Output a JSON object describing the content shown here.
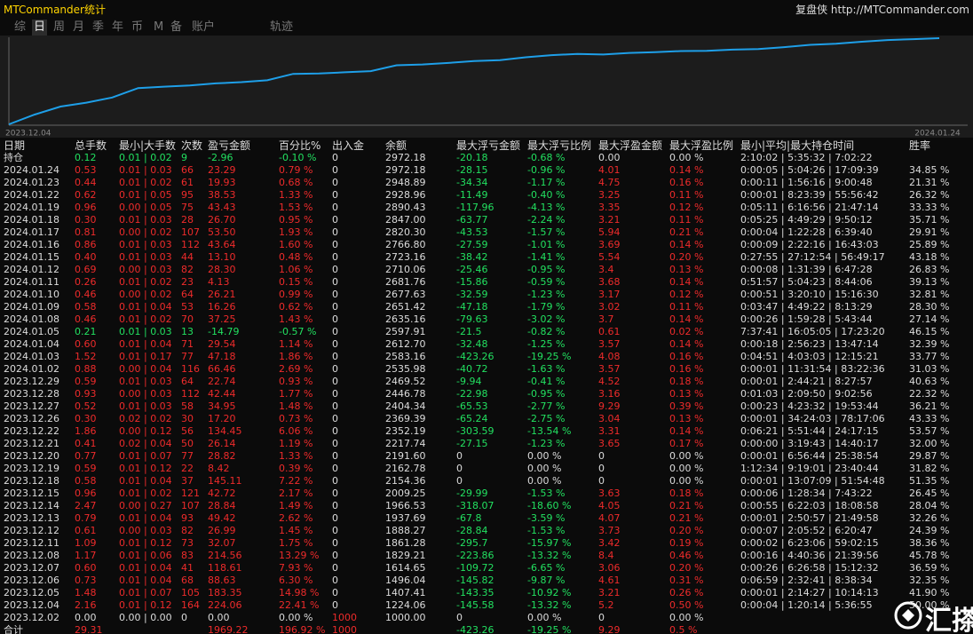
{
  "header": {
    "title": "MTCommander统计",
    "site": "复盘侠 http://MTCommander.com"
  },
  "tabs": [
    "综",
    "日",
    "周",
    "月",
    "季",
    "年",
    "币",
    "M",
    "备",
    "账户",
    "轨迹"
  ],
  "active_tab": 1,
  "chart": {
    "start_label": "2023.12.04",
    "end_label": "2024.01.24",
    "color": "#1e9fe8"
  },
  "table": {
    "header": [
      "日期",
      "总手数",
      "最小|大手数",
      "次数",
      "盈亏金额",
      "百分比%",
      "出入金",
      "余额",
      "最大浮亏金额",
      "最大浮亏比例",
      "最大浮盈金额",
      "最大浮盈比例",
      "最小|平均|最大持仓时间",
      "胜率"
    ],
    "rows": [
      [
        "持仓",
        "0.12",
        "0.01 | 0.02",
        "9",
        "-2.96",
        "-0.10 %",
        "0",
        "2972.18",
        "-20.18",
        "-0.68 %",
        "0.00",
        "0.00 %",
        "2:10:02 | 5:35:32 | 7:02:22"
      ],
      [
        "2024.01.24",
        "0.53",
        "0.01 | 0.03",
        "66",
        "23.29",
        "0.79 %",
        "0",
        "2972.18",
        "-28.15",
        "-0.96 %",
        "4.01",
        "0.14 %",
        "0:00:05 | 5:04:26 | 17:09:39",
        "34.85 %"
      ],
      [
        "2024.01.23",
        "0.44",
        "0.01 | 0.02",
        "61",
        "19.93",
        "0.68 %",
        "0",
        "2948.89",
        "-34.34",
        "-1.17 %",
        "4.75",
        "0.16 %",
        "0:00:11 | 1:56:16 | 9:00:48",
        "21.31 %"
      ],
      [
        "2024.01.22",
        "0.62",
        "0.01 | 0.05",
        "95",
        "38.53",
        "1.33 %",
        "0",
        "2928.96",
        "-11.49",
        "-0.40 %",
        "3.25",
        "0.11 %",
        "0:00:01 | 8:23:39 | 55:56:42",
        "26.32 %"
      ],
      [
        "2024.01.19",
        "0.96",
        "0.00 | 0.05",
        "75",
        "43.43",
        "1.53 %",
        "0",
        "2890.43",
        "-117.96",
        "-4.13 %",
        "3.35",
        "0.12 %",
        "0:05:11 | 6:16:56 | 21:47:14",
        "33.33 %"
      ],
      [
        "2024.01.18",
        "0.30",
        "0.01 | 0.03",
        "28",
        "26.70",
        "0.95 %",
        "0",
        "2847.00",
        "-63.77",
        "-2.24 %",
        "3.21",
        "0.11 %",
        "0:05:25 | 4:49:29 | 9:50:12",
        "35.71 %"
      ],
      [
        "2024.01.17",
        "0.81",
        "0.00 | 0.02",
        "107",
        "53.50",
        "1.93 %",
        "0",
        "2820.30",
        "-43.53",
        "-1.57 %",
        "5.94",
        "0.21 %",
        "0:00:04 | 1:22:28 | 6:39:40",
        "29.91 %"
      ],
      [
        "2024.01.16",
        "0.86",
        "0.01 | 0.03",
        "112",
        "43.64",
        "1.60 %",
        "0",
        "2766.80",
        "-27.59",
        "-1.01 %",
        "3.69",
        "0.14 %",
        "0:00:09 | 2:22:16 | 16:43:03",
        "25.89 %"
      ],
      [
        "2024.01.15",
        "0.40",
        "0.01 | 0.03",
        "44",
        "13.10",
        "0.48 %",
        "0",
        "2723.16",
        "-38.42",
        "-1.41 %",
        "5.54",
        "0.20 %",
        "0:27:55 | 27:12:54 | 56:49:17",
        "43.18 %"
      ],
      [
        "2024.01.12",
        "0.69",
        "0.00 | 0.03",
        "82",
        "28.30",
        "1.06 %",
        "0",
        "2710.06",
        "-25.46",
        "-0.95 %",
        "3.4",
        "0.13 %",
        "0:00:08 | 1:31:39 | 6:47:28",
        "26.83 %"
      ],
      [
        "2024.01.11",
        "0.26",
        "0.01 | 0.02",
        "23",
        "4.13",
        "0.15 %",
        "0",
        "2681.76",
        "-15.86",
        "-0.59 %",
        "3.68",
        "0.14 %",
        "0:51:57 | 5:04:23 | 8:44:06",
        "39.13 %"
      ],
      [
        "2024.01.10",
        "0.46",
        "0.00 | 0.02",
        "64",
        "26.21",
        "0.99 %",
        "0",
        "2677.63",
        "-32.59",
        "-1.23 %",
        "3.17",
        "0.12 %",
        "0:00:51 | 3:20:10 | 15:16:30",
        "32.81 %"
      ],
      [
        "2024.01.09",
        "0.58",
        "0.01 | 0.04",
        "53",
        "16.26",
        "0.62 %",
        "0",
        "2651.42",
        "-47.18",
        "-1.79 %",
        "3.02",
        "0.11 %",
        "0:03:47 | 4:49:22 | 8:13:29",
        "28.30 %"
      ],
      [
        "2024.01.08",
        "0.46",
        "0.01 | 0.02",
        "70",
        "37.25",
        "1.43 %",
        "0",
        "2635.16",
        "-79.63",
        "-3.02 %",
        "3.7",
        "0.14 %",
        "0:00:26 | 1:59:28 | 5:43:44",
        "27.14 %"
      ],
      [
        "2024.01.05",
        "0.21",
        "0.01 | 0.03",
        "13",
        "-14.79",
        "-0.57 %",
        "0",
        "2597.91",
        "-21.5",
        "-0.82 %",
        "0.61",
        "0.02 %",
        "7:37:41 | 16:05:05 | 17:23:20",
        "46.15 %"
      ],
      [
        "2024.01.04",
        "0.60",
        "0.01 | 0.04",
        "71",
        "29.54",
        "1.14 %",
        "0",
        "2612.70",
        "-32.48",
        "-1.25 %",
        "3.57",
        "0.14 %",
        "0:00:18 | 2:56:23 | 13:47:14",
        "32.39 %"
      ],
      [
        "2024.01.03",
        "1.52",
        "0.01 | 0.17",
        "77",
        "47.18",
        "1.86 %",
        "0",
        "2583.16",
        "-423.26",
        "-19.25 %",
        "4.08",
        "0.16 %",
        "0:04:51 | 4:03:03 | 12:15:21",
        "33.77 %"
      ],
      [
        "2024.01.02",
        "0.88",
        "0.00 | 0.04",
        "116",
        "66.46",
        "2.69 %",
        "0",
        "2535.98",
        "-40.72",
        "-1.63 %",
        "3.57",
        "0.16 %",
        "0:00:01 | 11:31:54 | 83:22:36",
        "31.03 %"
      ],
      [
        "2023.12.29",
        "0.59",
        "0.01 | 0.03",
        "64",
        "22.74",
        "0.93 %",
        "0",
        "2469.52",
        "-9.94",
        "-0.41 %",
        "4.52",
        "0.18 %",
        "0:00:01 | 2:44:21 | 8:27:57",
        "40.63 %"
      ],
      [
        "2023.12.28",
        "0.93",
        "0.00 | 0.03",
        "112",
        "42.44",
        "1.77 %",
        "0",
        "2446.78",
        "-22.98",
        "-0.95 %",
        "3.16",
        "0.13 %",
        "0:01:03 | 2:09:50 | 9:02:56",
        "22.32 %"
      ],
      [
        "2023.12.27",
        "0.52",
        "0.01 | 0.03",
        "58",
        "34.95",
        "1.48 %",
        "0",
        "2404.34",
        "-65.53",
        "-2.77 %",
        "9.29",
        "0.39 %",
        "0:00:23 | 4:23:32 | 19:53:44",
        "36.21 %"
      ],
      [
        "2023.12.26",
        "0.30",
        "0.02 | 0.02",
        "30",
        "17.20",
        "0.73 %",
        "0",
        "2369.39",
        "-65.24",
        "-2.75 %",
        "3.04",
        "0.13 %",
        "0:00:01 | 34:24:03 | 78:17:06",
        "43.33 %"
      ],
      [
        "2023.12.22",
        "1.86",
        "0.00 | 0.12",
        "56",
        "134.45",
        "6.06 %",
        "0",
        "2352.19",
        "-303.59",
        "-13.54 %",
        "3.31",
        "0.14 %",
        "0:06:21 | 5:51:44 | 24:17:15",
        "53.57 %"
      ],
      [
        "2023.12.21",
        "0.41",
        "0.02 | 0.04",
        "50",
        "26.14",
        "1.19 %",
        "0",
        "2217.74",
        "-27.15",
        "-1.23 %",
        "3.65",
        "0.17 %",
        "0:00:00 | 3:19:43 | 14:40:17",
        "32.00 %"
      ],
      [
        "2023.12.20",
        "0.77",
        "0.01 | 0.07",
        "77",
        "28.82",
        "1.33 %",
        "0",
        "2191.60",
        "0",
        "0.00 %",
        "0",
        "0.00 %",
        "0:00:01 | 6:56:44 | 25:38:54",
        "29.87 %"
      ],
      [
        "2023.12.19",
        "0.59",
        "0.01 | 0.12",
        "22",
        "8.42",
        "0.39 %",
        "0",
        "2162.78",
        "0",
        "0.00 %",
        "0",
        "0.00 %",
        "1:12:34 | 9:19:01 | 23:40:44",
        "31.82 %"
      ],
      [
        "2023.12.18",
        "0.58",
        "0.01 | 0.04",
        "37",
        "145.11",
        "7.22 %",
        "0",
        "2154.36",
        "0",
        "0.00 %",
        "0",
        "0.00 %",
        "0:00:01 | 13:07:09 | 51:54:48",
        "51.35 %"
      ],
      [
        "2023.12.15",
        "0.96",
        "0.01 | 0.02",
        "121",
        "42.72",
        "2.17 %",
        "0",
        "2009.25",
        "-29.99",
        "-1.53 %",
        "3.63",
        "0.18 %",
        "0:00:06 | 1:28:34 | 7:43:22",
        "26.45 %"
      ],
      [
        "2023.12.14",
        "2.47",
        "0.00 | 0.27",
        "107",
        "28.84",
        "1.49 %",
        "0",
        "1966.53",
        "-318.07",
        "-18.60 %",
        "4.05",
        "0.21 %",
        "0:00:55 | 6:22:03 | 18:08:58",
        "28.04 %"
      ],
      [
        "2023.12.13",
        "0.79",
        "0.01 | 0.04",
        "93",
        "49.42",
        "2.62 %",
        "0",
        "1937.69",
        "-67.8",
        "-3.59 %",
        "4.07",
        "0.21 %",
        "0:00:01 | 2:50:57 | 21:49:58",
        "32.26 %"
      ],
      [
        "2023.12.12",
        "0.61",
        "0.00 | 0.03",
        "82",
        "26.99",
        "1.45 %",
        "0",
        "1888.27",
        "-28.84",
        "-1.53 %",
        "3.73",
        "0.20 %",
        "0:00:07 | 2:05:52 | 6:20:47",
        "24.39 %"
      ],
      [
        "2023.12.11",
        "1.09",
        "0.01 | 0.12",
        "73",
        "32.07",
        "1.75 %",
        "0",
        "1861.28",
        "-295.7",
        "-15.97 %",
        "3.42",
        "0.19 %",
        "0:00:02 | 6:23:06 | 59:02:15",
        "38.36 %"
      ],
      [
        "2023.12.08",
        "1.17",
        "0.01 | 0.06",
        "83",
        "214.56",
        "13.29 %",
        "0",
        "1829.21",
        "-223.86",
        "-13.32 %",
        "8.4",
        "0.46 %",
        "0:00:16 | 4:40:36 | 21:39:56",
        "45.78 %"
      ],
      [
        "2023.12.07",
        "0.60",
        "0.01 | 0.04",
        "41",
        "118.61",
        "7.93 %",
        "0",
        "1614.65",
        "-109.72",
        "-6.65 %",
        "3.06",
        "0.20 %",
        "0:00:26 | 6:26:58 | 15:12:32",
        "36.59 %"
      ],
      [
        "2023.12.06",
        "0.73",
        "0.01 | 0.04",
        "68",
        "88.63",
        "6.30 %",
        "0",
        "1496.04",
        "-145.82",
        "-9.87 %",
        "4.61",
        "0.31 %",
        "0:06:59 | 2:32:41 | 8:38:34",
        "32.35 %"
      ],
      [
        "2023.12.05",
        "1.48",
        "0.01 | 0.07",
        "105",
        "183.35",
        "14.98 %",
        "0",
        "1407.41",
        "-143.35",
        "-10.92 %",
        "3.21",
        "0.26 %",
        "0:00:01 | 2:14:27 | 10:14:13",
        "41.90 %"
      ],
      [
        "2023.12.04",
        "2.16",
        "0.01 | 0.12",
        "164",
        "224.06",
        "22.41 %",
        "0",
        "1224.06",
        "-145.58",
        "-13.32 %",
        "5.2",
        "0.50 %",
        "0:00:04 | 1:20:14 | 5:36:55",
        "50.00 %"
      ],
      [
        "2023.12.02",
        "0.00",
        "0.00 | 0.00",
        "0",
        "0.00",
        "0.00 %",
        "1000",
        "1000.00",
        "0",
        "0.00 %",
        "0",
        "0.00 %"
      ],
      [
        "合计",
        "29.31",
        null,
        null,
        "1969.22",
        "196.92 %",
        "1000",
        null,
        "-423.26",
        "-19.25 %",
        "9.29",
        "0.5 %"
      ]
    ]
  },
  "watermark": "汇搽网"
}
